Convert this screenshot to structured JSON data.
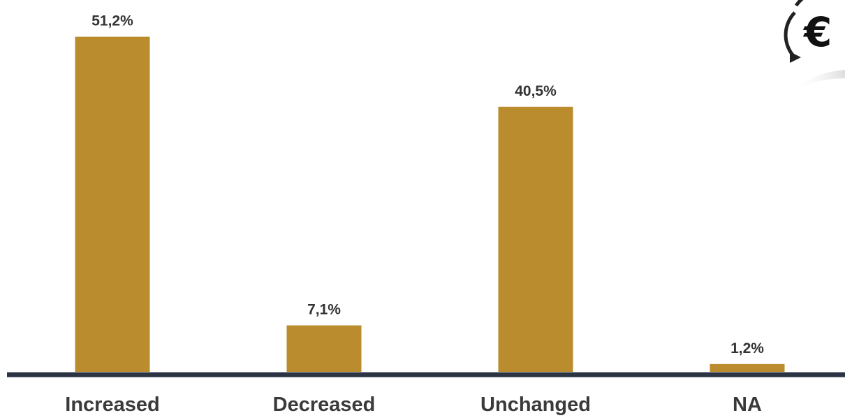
{
  "chart_data": {
    "type": "bar",
    "categories": [
      "Increased",
      "Decreased",
      "Unchanged",
      "NA"
    ],
    "values": [
      51.2,
      7.1,
      40.5,
      1.2
    ],
    "value_labels": [
      "51,2%",
      "7,1%",
      "40,5%",
      "1,2%"
    ],
    "ylim": [
      0,
      55
    ],
    "grid": false,
    "colors": {
      "bar": "#BA8C2E",
      "axis": "#2B3445"
    }
  },
  "decoration": {
    "icon": "euro-exchange-icon",
    "glyph": "€"
  }
}
